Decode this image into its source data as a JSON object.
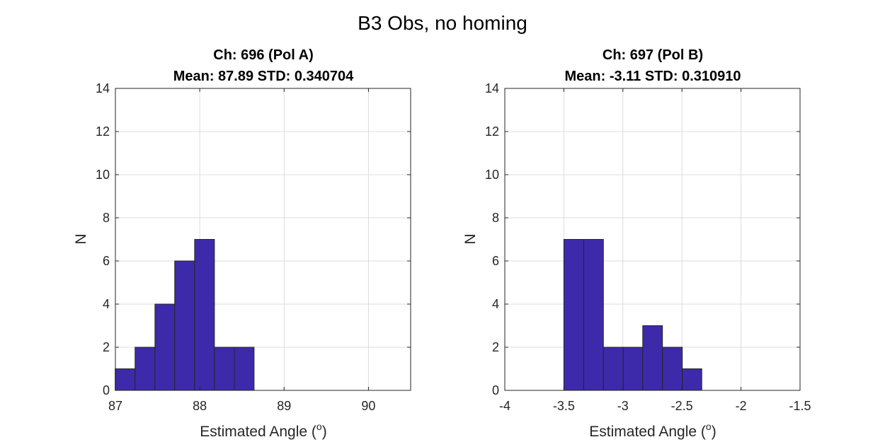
{
  "suptitle": "B3 Obs, no homing",
  "chart_data": [
    {
      "type": "bar",
      "title_line1": "Ch: 696 (Pol A)",
      "title_line2": "Mean: 87.89 STD: 0.340704",
      "xlabel": "Estimated Angle (",
      "xlabel_sup": "o",
      "xlabel_end": ")",
      "ylabel": "N",
      "xlim": [
        87,
        90.5
      ],
      "ylim": [
        0,
        14
      ],
      "xticks": [
        87,
        88,
        89,
        90
      ],
      "xtick_labels": [
        "87",
        "88",
        "89",
        "90"
      ],
      "yticks": [
        0,
        2,
        4,
        6,
        8,
        10,
        12,
        14
      ],
      "ytick_labels": [
        "0",
        "2",
        "4",
        "6",
        "8",
        "10",
        "12",
        "14"
      ],
      "grid": true,
      "bar_color": "#3d2aaa",
      "bins": [
        {
          "x0": 86.997,
          "x1": 87.233,
          "count": 1
        },
        {
          "x0": 87.233,
          "x1": 87.469,
          "count": 2
        },
        {
          "x0": 87.469,
          "x1": 87.703,
          "count": 4
        },
        {
          "x0": 87.703,
          "x1": 87.939,
          "count": 6
        },
        {
          "x0": 87.939,
          "x1": 88.174,
          "count": 7
        },
        {
          "x0": 88.174,
          "x1": 88.41,
          "count": 2
        },
        {
          "x0": 88.41,
          "x1": 88.644,
          "count": 2
        }
      ]
    },
    {
      "type": "bar",
      "title_line1": "Ch: 697 (Pol B)",
      "title_line2": "Mean: -3.11 STD: 0.310910",
      "xlabel": "Estimated Angle (",
      "xlabel_sup": "o",
      "xlabel_end": ")",
      "ylabel": "N",
      "xlim": [
        -4,
        -1.5
      ],
      "ylim": [
        0,
        14
      ],
      "xticks": [
        -4,
        -3.5,
        -3,
        -2.5,
        -2,
        -1.5
      ],
      "xtick_labels": [
        "-4",
        "-3.5",
        "-3",
        "-2.5",
        "-2",
        "-1.5"
      ],
      "yticks": [
        0,
        2,
        4,
        6,
        8,
        10,
        12,
        14
      ],
      "ytick_labels": [
        "0",
        "2",
        "4",
        "6",
        "8",
        "10",
        "12",
        "14"
      ],
      "grid": true,
      "bar_color": "#3d2aaa",
      "bins": [
        {
          "x0": -3.5,
          "x1": -3.332,
          "count": 7
        },
        {
          "x0": -3.332,
          "x1": -3.165,
          "count": 7
        },
        {
          "x0": -3.165,
          "x1": -2.997,
          "count": 2
        },
        {
          "x0": -2.997,
          "x1": -2.832,
          "count": 2
        },
        {
          "x0": -2.832,
          "x1": -2.665,
          "count": 3
        },
        {
          "x0": -2.665,
          "x1": -2.497,
          "count": 2
        },
        {
          "x0": -2.497,
          "x1": -2.332,
          "count": 1
        }
      ]
    }
  ]
}
